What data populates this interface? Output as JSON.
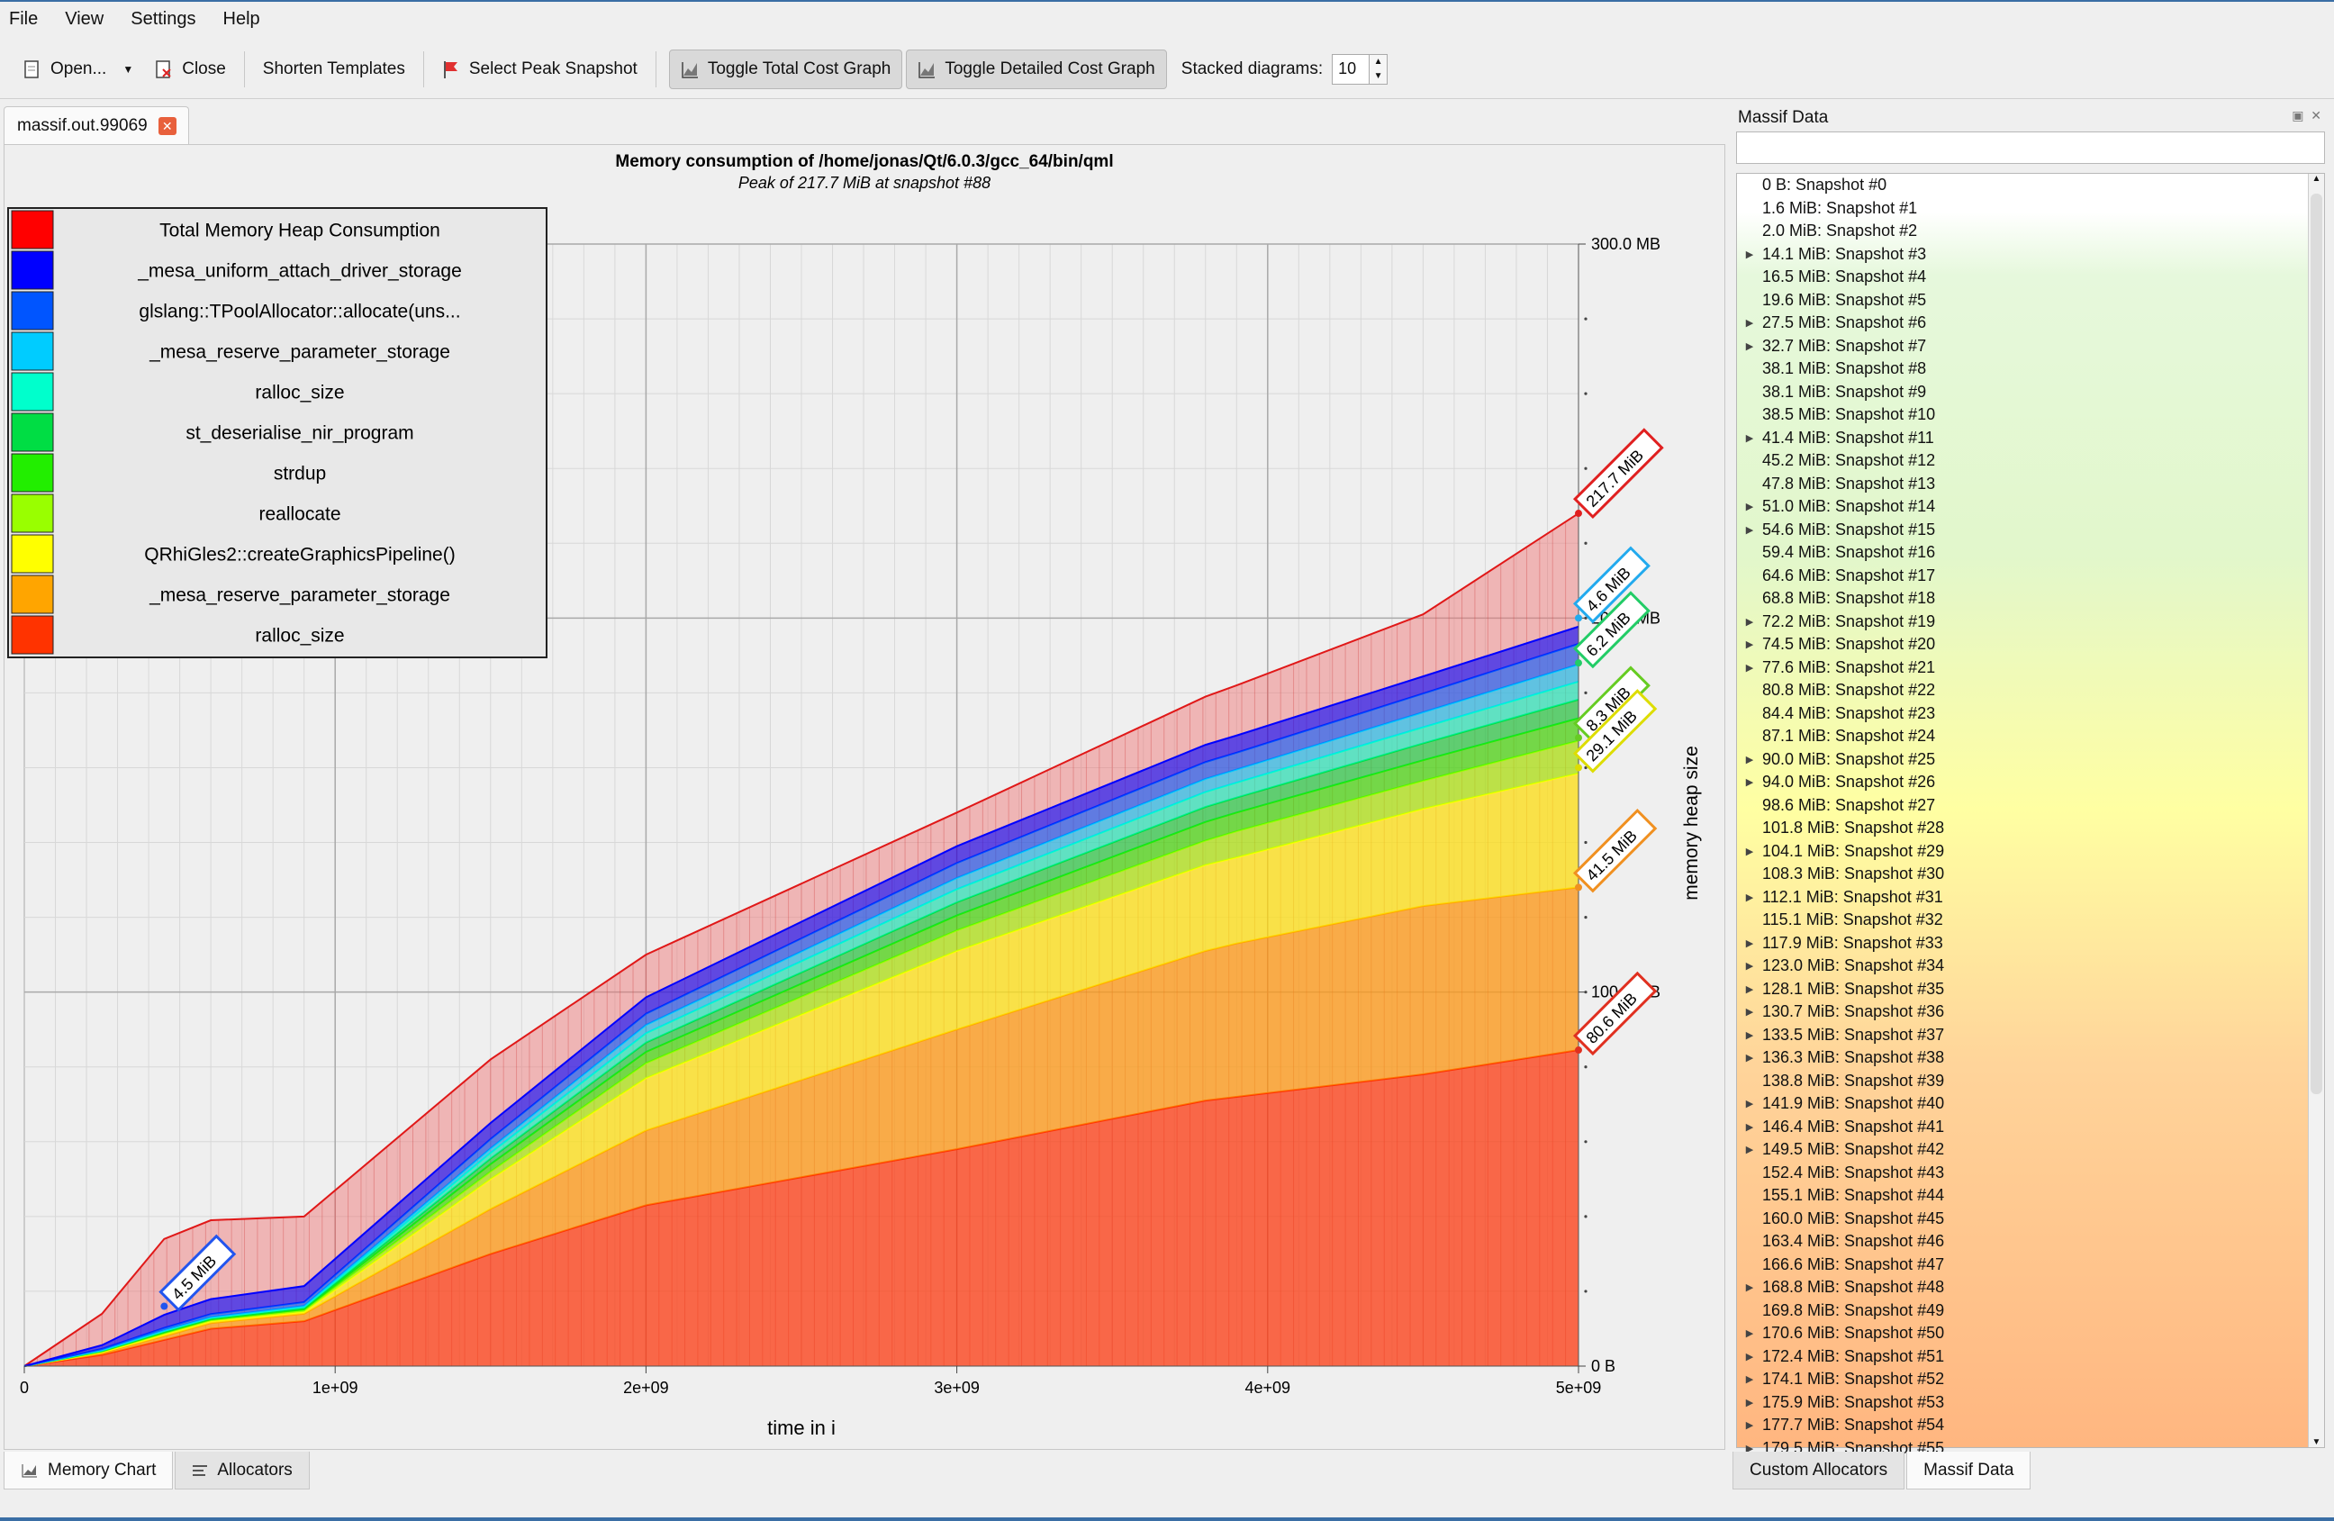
{
  "menu": [
    "File",
    "View",
    "Settings",
    "Help"
  ],
  "toolbar": {
    "open": "Open...",
    "close": "Close",
    "shorten": "Shorten Templates",
    "select_peak": "Select Peak Snapshot",
    "toggle_total": "Toggle Total Cost Graph",
    "toggle_detailed": "Toggle Detailed Cost Graph",
    "stacked_label": "Stacked diagrams:",
    "stacked_value": "10"
  },
  "document_tab": "massif.out.99069",
  "bottom_tabs": {
    "memory_chart": "Memory Chart",
    "allocators": "Allocators"
  },
  "right_panel": {
    "title": "Massif Data",
    "filter_value": "",
    "tabs": {
      "custom": "Custom Allocators",
      "massif": "Massif Data"
    },
    "snapshots": [
      {
        "label": "0 B: Snapshot #0",
        "expandable": false
      },
      {
        "label": "1.6 MiB: Snapshot #1",
        "expandable": false
      },
      {
        "label": "2.0 MiB: Snapshot #2",
        "expandable": false
      },
      {
        "label": "14.1 MiB: Snapshot #3",
        "expandable": true
      },
      {
        "label": "16.5 MiB: Snapshot #4",
        "expandable": false
      },
      {
        "label": "19.6 MiB: Snapshot #5",
        "expandable": false
      },
      {
        "label": "27.5 MiB: Snapshot #6",
        "expandable": true
      },
      {
        "label": "32.7 MiB: Snapshot #7",
        "expandable": true
      },
      {
        "label": "38.1 MiB: Snapshot #8",
        "expandable": false
      },
      {
        "label": "38.1 MiB: Snapshot #9",
        "expandable": false
      },
      {
        "label": "38.5 MiB: Snapshot #10",
        "expandable": false
      },
      {
        "label": "41.4 MiB: Snapshot #11",
        "expandable": true
      },
      {
        "label": "45.2 MiB: Snapshot #12",
        "expandable": false
      },
      {
        "label": "47.8 MiB: Snapshot #13",
        "expandable": false
      },
      {
        "label": "51.0 MiB: Snapshot #14",
        "expandable": true
      },
      {
        "label": "54.6 MiB: Snapshot #15",
        "expandable": true
      },
      {
        "label": "59.4 MiB: Snapshot #16",
        "expandable": false
      },
      {
        "label": "64.6 MiB: Snapshot #17",
        "expandable": false
      },
      {
        "label": "68.8 MiB: Snapshot #18",
        "expandable": false
      },
      {
        "label": "72.2 MiB: Snapshot #19",
        "expandable": true
      },
      {
        "label": "74.5 MiB: Snapshot #20",
        "expandable": true
      },
      {
        "label": "77.6 MiB: Snapshot #21",
        "expandable": true
      },
      {
        "label": "80.8 MiB: Snapshot #22",
        "expandable": false
      },
      {
        "label": "84.4 MiB: Snapshot #23",
        "expandable": false
      },
      {
        "label": "87.1 MiB: Snapshot #24",
        "expandable": false
      },
      {
        "label": "90.0 MiB: Snapshot #25",
        "expandable": true
      },
      {
        "label": "94.0 MiB: Snapshot #26",
        "expandable": true
      },
      {
        "label": "98.6 MiB: Snapshot #27",
        "expandable": false
      },
      {
        "label": "101.8 MiB: Snapshot #28",
        "expandable": false
      },
      {
        "label": "104.1 MiB: Snapshot #29",
        "expandable": true
      },
      {
        "label": "108.3 MiB: Snapshot #30",
        "expandable": false
      },
      {
        "label": "112.1 MiB: Snapshot #31",
        "expandable": true
      },
      {
        "label": "115.1 MiB: Snapshot #32",
        "expandable": false
      },
      {
        "label": "117.9 MiB: Snapshot #33",
        "expandable": true
      },
      {
        "label": "123.0 MiB: Snapshot #34",
        "expandable": true
      },
      {
        "label": "128.1 MiB: Snapshot #35",
        "expandable": true
      },
      {
        "label": "130.7 MiB: Snapshot #36",
        "expandable": true
      },
      {
        "label": "133.5 MiB: Snapshot #37",
        "expandable": true
      },
      {
        "label": "136.3 MiB: Snapshot #38",
        "expandable": true
      },
      {
        "label": "138.8 MiB: Snapshot #39",
        "expandable": false
      },
      {
        "label": "141.9 MiB: Snapshot #40",
        "expandable": true
      },
      {
        "label": "146.4 MiB: Snapshot #41",
        "expandable": true
      },
      {
        "label": "149.5 MiB: Snapshot #42",
        "expandable": true
      },
      {
        "label": "152.4 MiB: Snapshot #43",
        "expandable": false
      },
      {
        "label": "155.1 MiB: Snapshot #44",
        "expandable": false
      },
      {
        "label": "160.0 MiB: Snapshot #45",
        "expandable": false
      },
      {
        "label": "163.4 MiB: Snapshot #46",
        "expandable": false
      },
      {
        "label": "166.6 MiB: Snapshot #47",
        "expandable": false
      },
      {
        "label": "168.8 MiB: Snapshot #48",
        "expandable": true
      },
      {
        "label": "169.8 MiB: Snapshot #49",
        "expandable": false
      },
      {
        "label": "170.6 MiB: Snapshot #50",
        "expandable": true
      },
      {
        "label": "172.4 MiB: Snapshot #51",
        "expandable": true
      },
      {
        "label": "174.1 MiB: Snapshot #52",
        "expandable": true
      },
      {
        "label": "175.9 MiB: Snapshot #53",
        "expandable": true
      },
      {
        "label": "177.7 MiB: Snapshot #54",
        "expandable": true
      },
      {
        "label": "179.5 MiB: Snapshot #55",
        "expandable": true
      }
    ]
  },
  "chart_data": {
    "type": "area",
    "title": "Memory consumption of /home/jonas/Qt/6.0.3/gcc_64/bin/qml",
    "subtitle": "Peak of 217.7 MiB at snapshot #88",
    "xlabel": "time in i",
    "ylabel": "memory heap size",
    "x_ticks": [
      "0",
      "1e+09",
      "2e+09",
      "3e+09",
      "4e+09",
      "5e+09"
    ],
    "y_ticks": [
      "0 B",
      "100.0 MB",
      "200.0 MB",
      "300.0 MB"
    ],
    "xlim": [
      0,
      5000000000
    ],
    "ylim": [
      0,
      300
    ],
    "grid": true,
    "legend_position": "top-left",
    "legend": [
      {
        "name": "Total Memory Heap Consumption",
        "color": "#ff0000"
      },
      {
        "name": "_mesa_uniform_attach_driver_storage",
        "color": "#0000ff"
      },
      {
        "name": "glslang::TPoolAllocator::allocate(uns...",
        "color": "#0055ff"
      },
      {
        "name": "_mesa_reserve_parameter_storage",
        "color": "#00ccff"
      },
      {
        "name": "ralloc_size",
        "color": "#00ffcc"
      },
      {
        "name": "st_deserialise_nir_program",
        "color": "#00dd44"
      },
      {
        "name": "strdup",
        "color": "#22ee00"
      },
      {
        "name": "reallocate",
        "color": "#99ff00"
      },
      {
        "name": "QRhiGles2::createGraphicsPipeline()",
        "color": "#ffff00"
      },
      {
        "name": "_mesa_reserve_parameter_storage",
        "color": "#ffa500"
      },
      {
        "name": "ralloc_size",
        "color": "#ff3300"
      }
    ],
    "x": [
      0,
      250000000,
      450000000,
      600000000,
      900000000,
      1500000000,
      2000000000,
      3000000000,
      3800000000,
      3900000000,
      4500000000,
      5000000000
    ],
    "total": [
      0,
      14,
      34,
      39,
      40,
      82,
      110,
      148,
      179,
      182,
      201,
      228
    ],
    "layers": [
      {
        "name": "ralloc_size",
        "color": "#ff3300",
        "values": [
          0,
          3,
          7,
          10,
          12,
          30,
          43,
          58,
          71,
          72,
          78,
          84.5
        ]
      },
      {
        "name": "_mesa_reserve_parameter_storage",
        "color": "#ffa500",
        "values": [
          0,
          0.5,
          1,
          1.5,
          2,
          12,
          20,
          32,
          40,
          41,
          45,
          43.5
        ]
      },
      {
        "name": "QRhiGles2::createGraphicsPipeline()",
        "color": "#ffff00",
        "values": [
          0,
          0.2,
          0.5,
          0.5,
          0.5,
          8,
          14,
          21,
          23,
          23,
          26,
          30.5
        ]
      },
      {
        "name": "reallocate",
        "color": "#99ff00",
        "values": [
          0,
          0.2,
          0.3,
          0.3,
          0.4,
          2,
          4,
          5.5,
          6.5,
          7,
          7.5,
          8.7
        ]
      },
      {
        "name": "strdup",
        "color": "#22ee00",
        "values": [
          0,
          0.1,
          0.2,
          0.2,
          0.3,
          2,
          3,
          4,
          5,
          5,
          5.5,
          6
        ]
      },
      {
        "name": "st_deserialise_nir_program",
        "color": "#00dd44",
        "values": [
          0,
          0.1,
          0.2,
          0.2,
          0.3,
          1.5,
          2.5,
          3.5,
          4,
          4,
          4.5,
          5
        ]
      },
      {
        "name": "ralloc_size",
        "color": "#00ffcc",
        "values": [
          0,
          0.1,
          0.2,
          0.2,
          0.3,
          1.5,
          2.5,
          3.5,
          4,
          4,
          4.3,
          4.8
        ]
      },
      {
        "name": "_mesa_reserve_parameter_storage",
        "color": "#00ccff",
        "values": [
          0,
          0.1,
          0.2,
          0.2,
          0.3,
          1.2,
          2.2,
          3,
          3.5,
          3.5,
          4,
          4.6
        ]
      },
      {
        "name": "glslang::TPoolAllocator::allocate(uns...",
        "color": "#0055ff",
        "values": [
          0,
          0.3,
          0.6,
          0.8,
          1,
          2.5,
          3,
          4,
          4.5,
          4.5,
          5,
          5.5
        ]
      },
      {
        "name": "_mesa_uniform_attach_driver_storage",
        "color": "#0000ff",
        "values": [
          0,
          1,
          3.5,
          4,
          4.3,
          4.3,
          4.4,
          4.5,
          4.6,
          4.6,
          4.6,
          4.6
        ]
      }
    ],
    "value_labels": [
      {
        "text": "217.7 MiB",
        "color": "#e02020",
        "series": "total",
        "x": 5000000000,
        "y": 228
      },
      {
        "text": "4.6 MiB",
        "color": "#22aaee",
        "x": 5000000000,
        "y": 200
      },
      {
        "text": "6.2 MiB",
        "color": "#22cc66",
        "x": 5000000000,
        "y": 188
      },
      {
        "text": "8.3 MiB",
        "color": "#66cc22",
        "x": 5000000000,
        "y": 168
      },
      {
        "text": "29.1 MiB",
        "color": "#dddd00",
        "x": 5000000000,
        "y": 160
      },
      {
        "text": "41.5 MiB",
        "color": "#f09020",
        "x": 5000000000,
        "y": 128
      },
      {
        "text": "80.6 MiB",
        "color": "#e03020",
        "x": 5000000000,
        "y": 84.5
      },
      {
        "text": "4.5 MiB",
        "color": "#2255ee",
        "x": 450000000,
        "y": 16
      }
    ]
  }
}
